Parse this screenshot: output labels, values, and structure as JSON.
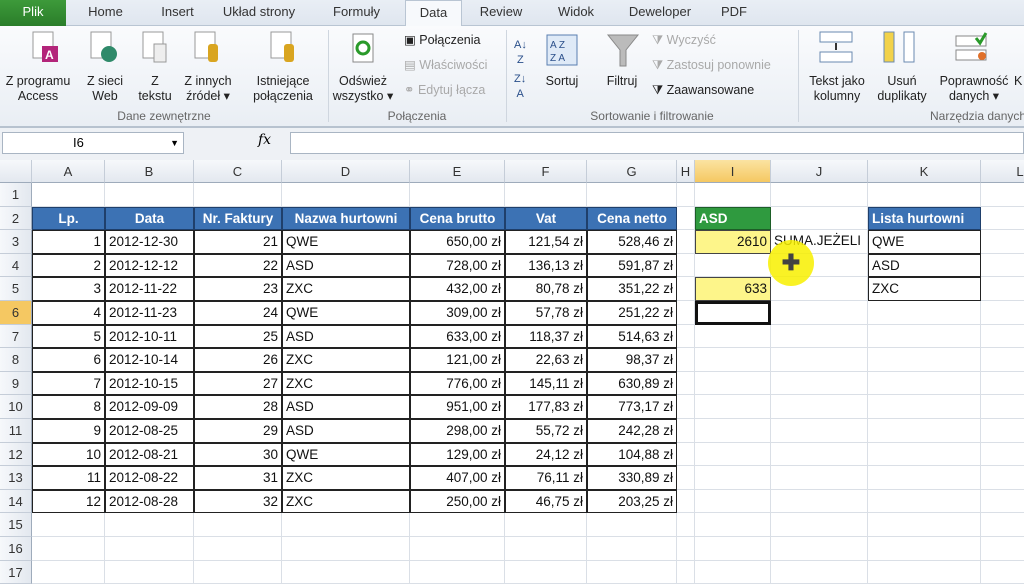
{
  "tabs": [
    "Plik",
    "Home",
    "Insert",
    "Układ strony",
    "Formuły",
    "Data",
    "Review",
    "Widok",
    "Deweloper",
    "PDF"
  ],
  "active_tab": "Data",
  "ribbon": {
    "dane": {
      "group": "Dane zewnętrzne",
      "access": "Z programu\nAccess",
      "web": "Z sieci\nWeb",
      "text": "Z\ntekstu",
      "other": "Z innych\nźródeł ▾",
      "existing": "Istniejące\npołączenia"
    },
    "polaczenia": {
      "group": "Połączenia",
      "refresh": "Odśwież\nwszystko ▾",
      "connections": "Połączenia",
      "properties": "Właściwości",
      "edit_links": "Edytuj łącza"
    },
    "sort": {
      "group": "Sortowanie i filtrowanie",
      "sort": "Sortuj",
      "filter": "Filtruj",
      "clear": "Wyczyść",
      "reapply": "Zastosuj ponownie",
      "advanced": "Zaawansowane"
    },
    "tools": {
      "group": "Narzędzia danych",
      "text_to_columns": "Tekst jako\nkolumny",
      "remove_dup": "Usuń\nduplikaty",
      "validation": "Poprawność\ndanych ▾",
      "more": "K"
    }
  },
  "formula_bar": {
    "name_box": "I6",
    "fx": "fx",
    "formula": ""
  },
  "columns": [
    "A",
    "B",
    "C",
    "D",
    "E",
    "F",
    "G",
    "H",
    "I",
    "J",
    "K",
    "L"
  ],
  "selected_column": "I",
  "selected_row": 6,
  "rows": [
    1,
    2,
    3,
    4,
    5,
    6,
    7,
    8,
    9,
    10,
    11,
    12,
    13,
    14,
    15,
    16,
    17
  ],
  "table": {
    "headers": [
      "Lp.",
      "Data",
      "Nr. Faktury",
      "Nazwa hurtowni",
      "Cena brutto",
      "Vat",
      "Cena netto"
    ],
    "rows": [
      [
        "1",
        "2012-12-30",
        "21",
        "QWE",
        "650,00 zł",
        "121,54 zł",
        "528,46 zł"
      ],
      [
        "2",
        "2012-12-12",
        "22",
        "ASD",
        "728,00 zł",
        "136,13 zł",
        "591,87 zł"
      ],
      [
        "3",
        "2012-11-22",
        "23",
        "ZXC",
        "432,00 zł",
        "80,78 zł",
        "351,22 zł"
      ],
      [
        "4",
        "2012-11-23",
        "24",
        "QWE",
        "309,00 zł",
        "57,78 zł",
        "251,22 zł"
      ],
      [
        "5",
        "2012-10-11",
        "25",
        "ASD",
        "633,00 zł",
        "118,37 zł",
        "514,63 zł"
      ],
      [
        "6",
        "2012-10-14",
        "26",
        "ZXC",
        "121,00 zł",
        "22,63 zł",
        "98,37 zł"
      ],
      [
        "7",
        "2012-10-15",
        "27",
        "ZXC",
        "776,00 zł",
        "145,11 zł",
        "630,89 zł"
      ],
      [
        "8",
        "2012-09-09",
        "28",
        "ASD",
        "951,00 zł",
        "177,83 zł",
        "773,17 zł"
      ],
      [
        "9",
        "2012-08-25",
        "29",
        "ASD",
        "298,00 zł",
        "55,72 zł",
        "242,28 zł"
      ],
      [
        "10",
        "2012-08-21",
        "30",
        "QWE",
        "129,00 zł",
        "24,12 zł",
        "104,88 zł"
      ],
      [
        "11",
        "2012-08-22",
        "31",
        "ZXC",
        "407,00 zł",
        "76,11 zł",
        "330,89 zł"
      ],
      [
        "12",
        "2012-08-28",
        "32",
        "ZXC",
        "250,00 zł",
        "46,75 zł",
        "203,25 zł"
      ]
    ]
  },
  "side": {
    "i2": "ASD",
    "i3": "2610",
    "j3": "SUMA.JEŻELI",
    "i5": "633"
  },
  "list": {
    "header": "Lista hurtowni",
    "items": [
      "QWE",
      "ASD",
      "ZXC"
    ]
  },
  "colors": {
    "header_blue": "#3c72b4",
    "green": "#2f9a3f",
    "yellow": "#fdf58a",
    "cursor_highlight": "#f8f000"
  }
}
